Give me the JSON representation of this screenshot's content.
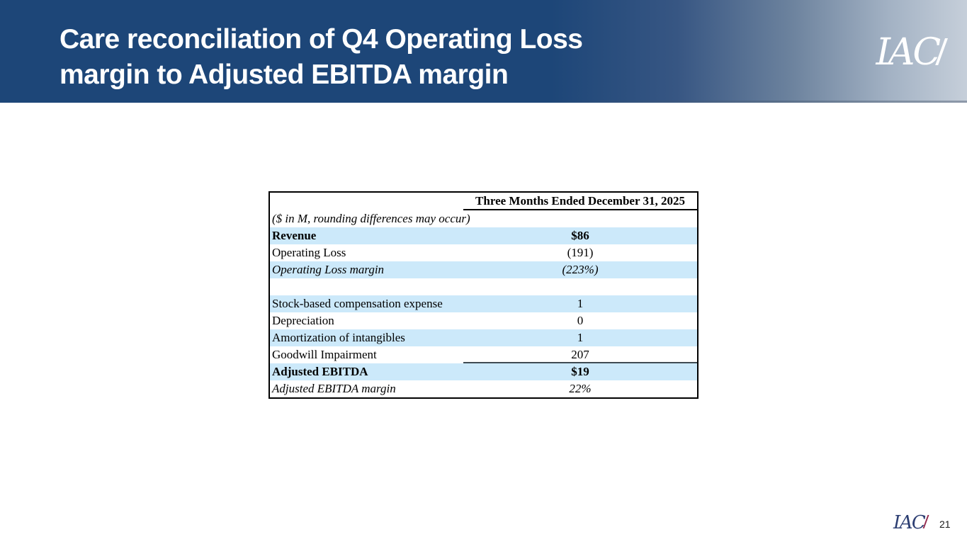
{
  "header": {
    "title_line1": "Care reconciliation of Q4 Operating Loss",
    "title_line2": "margin to Adjusted EBITDA margin",
    "logo_text": "IAC"
  },
  "footer": {
    "logo_text": "IAC",
    "page_number": "21"
  },
  "colors": {
    "header_navy": "#1d4678",
    "header_fade_end": "#c6cfda",
    "row_highlight_blue": "#cce9fa",
    "footer_logo_navy": "#2c3e72",
    "footer_logo_slash_maroon": "#93284c"
  },
  "table": {
    "column_header": "Three Months Ended December 31, 2025",
    "rows": [
      {
        "label": "($ in M, rounding differences may occur)",
        "value": "",
        "style": "italic",
        "highlight": false
      },
      {
        "label": "Revenue",
        "value": "$86",
        "style": "bold",
        "highlight": true
      },
      {
        "label": "Operating Loss",
        "value": "(191)",
        "style": "normal",
        "highlight": false
      },
      {
        "label": "Operating Loss margin",
        "value": "(223%)",
        "style": "italic",
        "highlight": true
      },
      {
        "label": "",
        "value": "",
        "style": "normal",
        "highlight": false
      },
      {
        "label": "Stock-based compensation expense",
        "value": "1",
        "style": "normal",
        "highlight": true
      },
      {
        "label": "Depreciation",
        "value": "0",
        "style": "normal",
        "highlight": false
      },
      {
        "label": "Amortization of intangibles",
        "value": "1",
        "style": "normal",
        "highlight": true
      },
      {
        "label": "Goodwill Impairment",
        "value": "207",
        "style": "normal",
        "highlight": false,
        "value_underline": true
      },
      {
        "label": "Adjusted EBITDA",
        "value": "$19",
        "style": "bold",
        "highlight": true
      },
      {
        "label": "Adjusted EBITDA margin",
        "value": "22%",
        "style": "italic",
        "highlight": false
      }
    ]
  }
}
